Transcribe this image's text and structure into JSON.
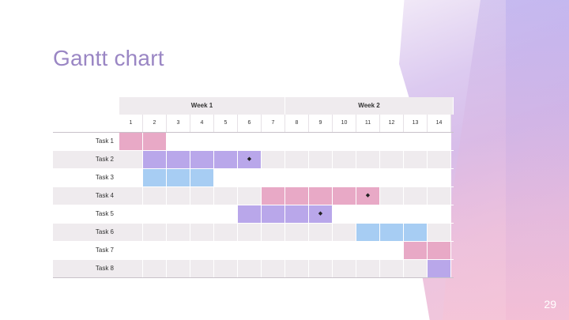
{
  "slide": {
    "title": "Gantt chart",
    "page_number": "29"
  },
  "gantt": {
    "weeks": [
      "Week 1",
      "Week 2"
    ],
    "days": [
      "1",
      "2",
      "3",
      "4",
      "5",
      "6",
      "7",
      "8",
      "9",
      "10",
      "11",
      "12",
      "13",
      "14"
    ],
    "colors": {
      "pink": "#e8a9c6",
      "purple": "#b9a7ea",
      "blue": "#a7cdf3"
    },
    "tasks": [
      {
        "label": "Task 1",
        "start": 1,
        "end": 2,
        "color": "pink",
        "milestone": null
      },
      {
        "label": "Task 2",
        "start": 2,
        "end": 6,
        "color": "purple",
        "milestone": 6
      },
      {
        "label": "Task 3",
        "start": 2,
        "end": 4,
        "color": "blue",
        "milestone": null
      },
      {
        "label": "Task 4",
        "start": 7,
        "end": 11,
        "color": "pink",
        "milestone": 11
      },
      {
        "label": "Task 5",
        "start": 6,
        "end": 9,
        "color": "purple",
        "milestone": 9
      },
      {
        "label": "Task 6",
        "start": 11,
        "end": 13,
        "color": "blue",
        "milestone": null
      },
      {
        "label": "Task 7",
        "start": 13,
        "end": 14,
        "color": "pink",
        "milestone": null
      },
      {
        "label": "Task 8",
        "start": 14,
        "end": 14,
        "color": "purple",
        "milestone": null
      }
    ],
    "milestone_symbol": "◆"
  }
}
